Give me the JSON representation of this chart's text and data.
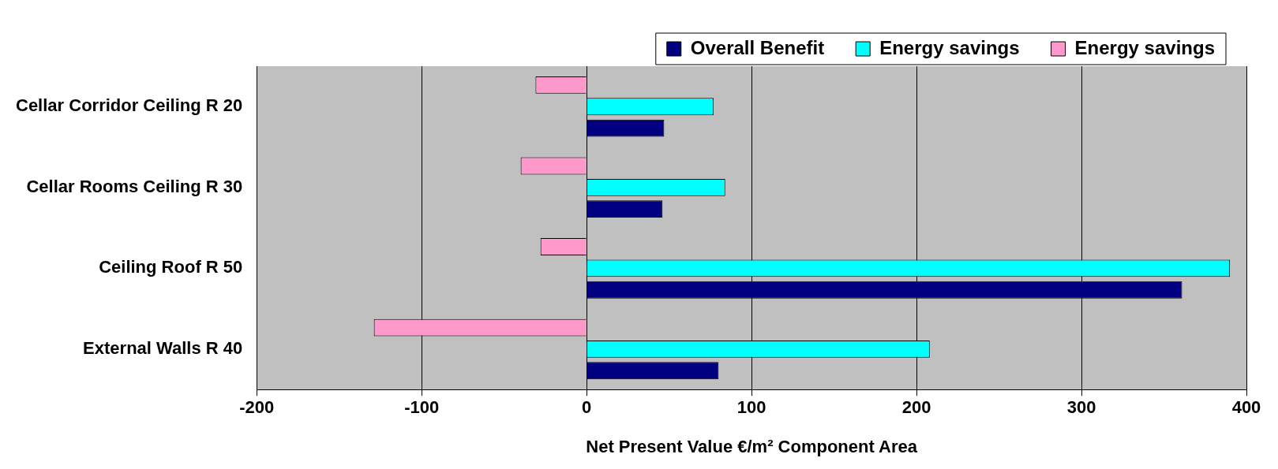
{
  "chart_data": {
    "type": "bar",
    "orientation": "horizontal",
    "xlabel": "Net Present Value €/m² Component Area",
    "categories": [
      "Cellar Corridor Ceiling R 20",
      "Cellar Rooms Ceiling R 30",
      "Ceiling Roof R 50",
      "External Walls R 40"
    ],
    "series": [
      {
        "name": "Overall Benefit",
        "color": "#000080",
        "values": [
          47,
          46,
          361,
          80
        ]
      },
      {
        "name": "Energy savings",
        "color": "#00ffff",
        "values": [
          77,
          84,
          390,
          208
        ]
      },
      {
        "name": "Energy savings",
        "color": "#ff99cc",
        "values": [
          -31,
          -40,
          -28,
          -129
        ]
      }
    ],
    "xlim": [
      -200,
      400
    ],
    "xticks": [
      -200,
      -100,
      0,
      100,
      200,
      300,
      400
    ],
    "grid": "x",
    "legend": "top right"
  }
}
